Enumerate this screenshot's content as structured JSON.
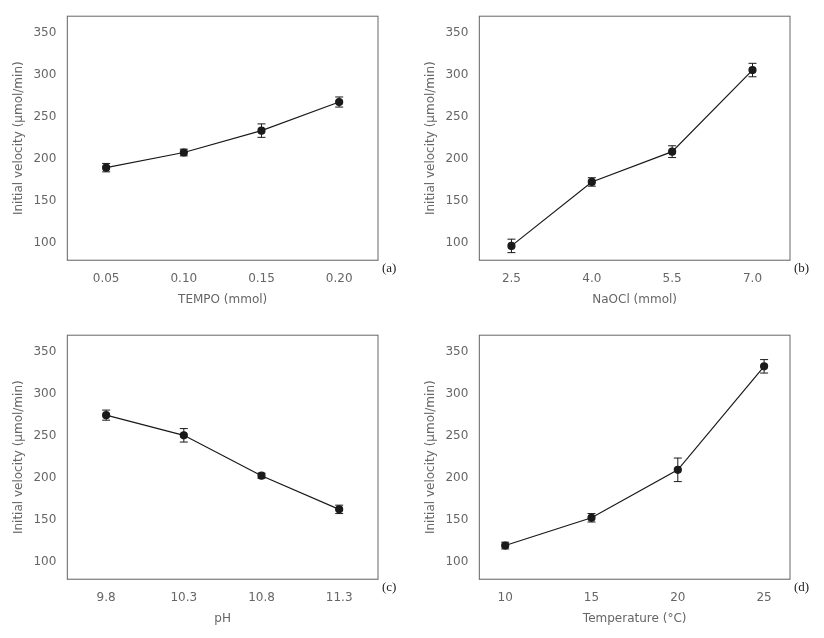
{
  "chart_data": [
    {
      "type": "line",
      "xlabel": "TEMPO (mmol)",
      "ylabel": "Initial velocity (μmol/min)",
      "annotation": "(a)",
      "x": [
        0.05,
        0.1,
        0.15,
        0.2
      ],
      "values": [
        190,
        208,
        234,
        268
      ],
      "yerr": [
        5,
        4,
        8,
        6
      ],
      "xlim": [
        0.025,
        0.225
      ],
      "ylim": [
        80,
        370
      ],
      "xticks": [
        0.05,
        {
          "value": 0.1,
          "label": "0.10"
        },
        0.15,
        {
          "value": 0.2,
          "label": "0.20"
        }
      ],
      "yticks": [
        100,
        150,
        200,
        250,
        300,
        350
      ],
      "color": "#1a1a1a",
      "marker": "circle",
      "line_style": "solid",
      "grid": false
    },
    {
      "type": "line",
      "xlabel": "NaOCl (mmol)",
      "ylabel": "Initial velocity (μmol/min)",
      "annotation": "(b)",
      "x": [
        2.5,
        4.0,
        5.5,
        7.0
      ],
      "values": [
        97,
        173,
        209,
        306
      ],
      "yerr": [
        8,
        5,
        7,
        8
      ],
      "xlim": [
        1.9,
        7.7
      ],
      "ylim": [
        80,
        370
      ],
      "xticks": [
        2.5,
        {
          "value": 4.0,
          "label": "4.0"
        },
        5.5,
        {
          "value": 7.0,
          "label": "7.0"
        }
      ],
      "yticks": [
        100,
        150,
        200,
        250,
        300,
        350
      ],
      "color": "#1a1a1a",
      "marker": "circle",
      "line_style": "solid",
      "grid": false
    },
    {
      "type": "line",
      "xlabel": "pH",
      "ylabel": "Initial velocity (μmol/min)",
      "annotation": "(c)",
      "x": [
        9.8,
        10.3,
        10.8,
        11.3
      ],
      "values": [
        275,
        251,
        203,
        163
      ],
      "yerr": [
        6,
        8,
        3,
        5
      ],
      "xlim": [
        9.55,
        11.55
      ],
      "ylim": [
        80,
        370
      ],
      "xticks": [
        9.8,
        10.3,
        10.8,
        11.3
      ],
      "yticks": [
        100,
        150,
        200,
        250,
        300,
        350
      ],
      "color": "#1a1a1a",
      "marker": "circle",
      "line_style": "solid",
      "grid": false
    },
    {
      "type": "line",
      "xlabel": "Temperature (°C)",
      "ylabel": "Initial velocity (μmol/min)",
      "annotation": "(d)",
      "x": [
        10,
        15,
        20,
        25
      ],
      "values": [
        120,
        153,
        210,
        333
      ],
      "yerr": [
        4,
        5,
        14,
        8
      ],
      "xlim": [
        8.5,
        26.5
      ],
      "ylim": [
        80,
        370
      ],
      "xticks": [
        10,
        15,
        20,
        25
      ],
      "yticks": [
        100,
        150,
        200,
        250,
        300,
        350
      ],
      "color": "#1a1a1a",
      "marker": "circle",
      "line_style": "solid",
      "grid": false
    }
  ]
}
